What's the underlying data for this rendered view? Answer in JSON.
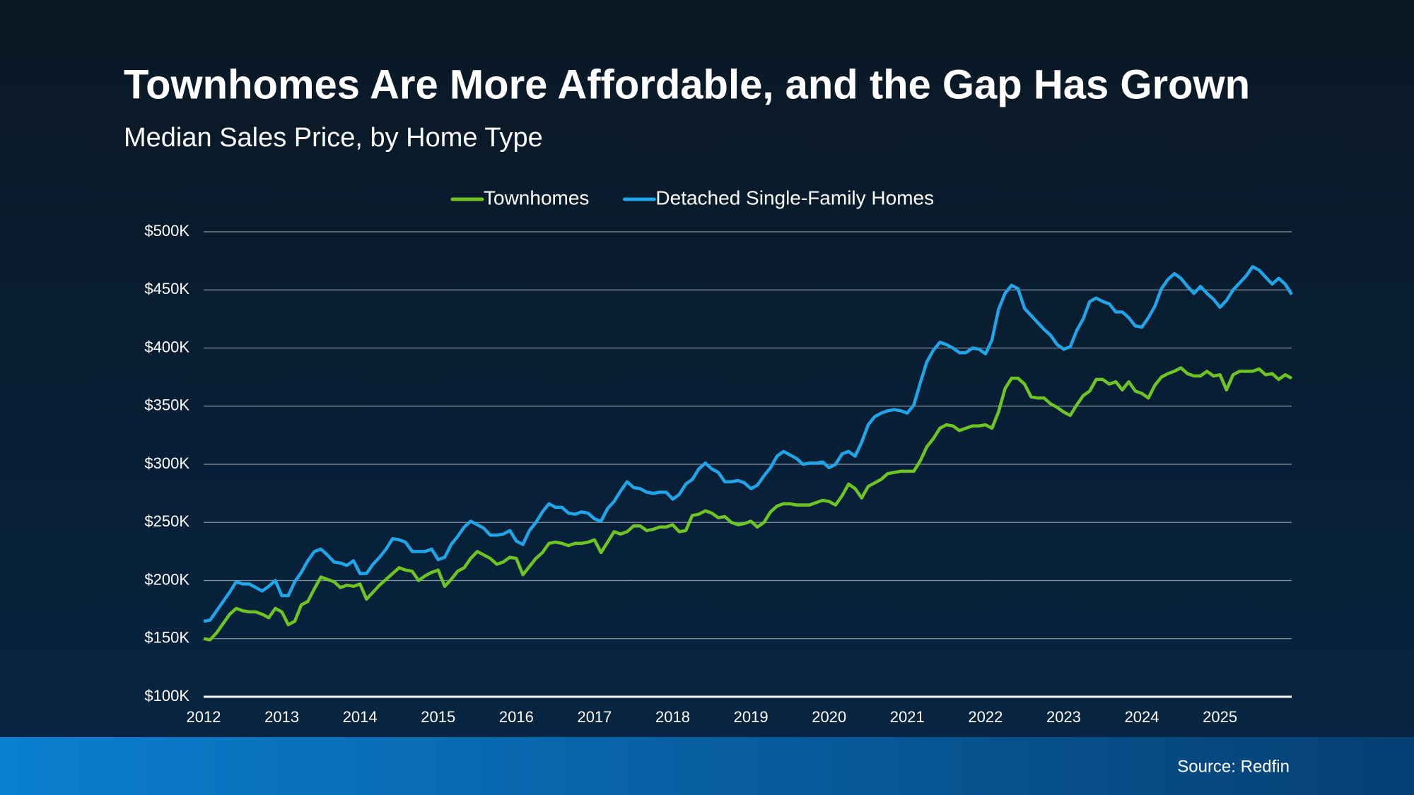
{
  "chart_data": {
    "type": "line",
    "title": "Townhomes Are More Affordable, and the Gap Has Grown",
    "subtitle": "Median Sales Price, by Home Type",
    "source": "Source: Redfin",
    "categories": [
      "2012",
      null,
      null,
      null,
      null,
      null,
      null,
      null,
      null,
      null,
      null,
      null,
      "2013",
      null,
      null,
      null,
      null,
      null,
      null,
      null,
      null,
      null,
      null,
      null,
      "2014",
      null,
      null,
      null,
      null,
      null,
      null,
      null,
      null,
      null,
      null,
      null,
      "2015",
      null,
      null,
      null,
      null,
      null,
      null,
      null,
      null,
      null,
      null,
      null,
      "2016",
      null,
      null,
      null,
      null,
      null,
      null,
      null,
      null,
      null,
      null,
      null,
      "2017",
      null,
      null,
      null,
      null,
      null,
      null,
      null,
      null,
      null,
      null,
      null,
      "2018",
      null,
      null,
      null,
      null,
      null,
      null,
      null,
      null,
      null,
      null,
      null,
      "2019",
      null,
      null,
      null,
      null,
      null,
      null,
      null,
      null,
      null,
      null,
      null,
      "2020",
      null,
      null,
      null,
      null,
      null,
      null,
      null,
      null,
      null,
      null,
      null,
      "2021",
      null,
      null,
      null,
      null,
      null,
      null,
      null,
      null,
      null,
      null,
      null,
      "2022",
      null,
      null,
      null,
      null,
      null,
      null,
      null,
      null,
      null,
      null,
      null,
      "2023",
      null,
      null,
      null,
      null,
      null,
      null,
      null,
      null,
      null,
      null,
      null,
      "2024",
      null,
      null,
      null,
      null,
      null,
      null,
      null,
      null,
      null,
      null,
      null,
      "2025",
      null,
      null,
      null,
      null,
      null,
      null,
      null,
      null,
      null,
      null,
      null
    ],
    "series": [
      {
        "name": "Townhomes",
        "color": "#6cc524",
        "values": [
          150000,
          149000,
          155000,
          163000,
          171000,
          176000,
          174000,
          173000,
          173000,
          171000,
          168000,
          176000,
          173000,
          162000,
          165000,
          179000,
          182000,
          193000,
          203000,
          201000,
          199000,
          194000,
          196000,
          195000,
          197000,
          184000,
          190000,
          196000,
          201000,
          206000,
          211000,
          209000,
          208000,
          200000,
          204000,
          207000,
          209000,
          195000,
          201000,
          208000,
          211000,
          219000,
          225000,
          222000,
          219000,
          214000,
          216000,
          220000,
          219000,
          205000,
          212000,
          219000,
          224000,
          232000,
          233000,
          232000,
          230000,
          232000,
          232000,
          233000,
          235000,
          224000,
          233000,
          242000,
          240000,
          242000,
          247000,
          247000,
          243000,
          244000,
          246000,
          246000,
          248000,
          242000,
          243000,
          256000,
          257000,
          260000,
          258000,
          254000,
          255000,
          250000,
          248000,
          249000,
          251000,
          246000,
          250000,
          259000,
          264000,
          266000,
          266000,
          265000,
          265000,
          265000,
          267000,
          269000,
          268000,
          265000,
          273000,
          283000,
          279000,
          271000,
          281000,
          284000,
          287000,
          292000,
          293000,
          294000,
          294000,
          294000,
          303000,
          315000,
          322000,
          331000,
          334000,
          333000,
          329000,
          331000,
          333000,
          333000,
          334000,
          331000,
          345000,
          365000,
          374000,
          374000,
          369000,
          358000,
          357000,
          357000,
          352000,
          349000,
          345000,
          342000,
          351000,
          359000,
          363000,
          373000,
          373000,
          369000,
          371000,
          364000,
          371000,
          363000,
          361000,
          357000,
          368000,
          375000,
          378000,
          380000,
          383000,
          378000,
          376000,
          376000,
          380000,
          376000,
          377000,
          364000,
          377000,
          380000,
          380000,
          380000,
          382000,
          377000,
          378000,
          373000,
          377000,
          374000
        ]
      },
      {
        "name": "Detached Single-Family Homes",
        "color": "#1fa5e8",
        "values": [
          165000,
          166000,
          174000,
          182000,
          190000,
          199000,
          197000,
          197000,
          194000,
          191000,
          195000,
          200000,
          187000,
          187000,
          199000,
          207000,
          217000,
          225000,
          227000,
          222000,
          216000,
          215000,
          213000,
          217000,
          206000,
          206000,
          214000,
          220000,
          227000,
          236000,
          235000,
          233000,
          225000,
          225000,
          225000,
          227000,
          218000,
          220000,
          231000,
          238000,
          246000,
          251000,
          248000,
          245000,
          239000,
          239000,
          240000,
          243000,
          234000,
          231000,
          243000,
          250000,
          259000,
          266000,
          263000,
          263000,
          258000,
          257000,
          259000,
          258000,
          253000,
          251000,
          262000,
          268000,
          277000,
          285000,
          280000,
          279000,
          276000,
          275000,
          276000,
          276000,
          270000,
          274000,
          283000,
          287000,
          296000,
          301000,
          296000,
          293000,
          285000,
          285000,
          286000,
          284000,
          279000,
          282000,
          290000,
          297000,
          307000,
          311000,
          308000,
          305000,
          300000,
          301000,
          301000,
          302000,
          297000,
          300000,
          309000,
          311000,
          307000,
          319000,
          334000,
          341000,
          344000,
          346000,
          347000,
          346000,
          344000,
          351000,
          370000,
          388000,
          398000,
          405000,
          403000,
          400000,
          396000,
          396000,
          400000,
          399000,
          395000,
          407000,
          433000,
          447000,
          454000,
          451000,
          434000,
          428000,
          422000,
          416000,
          411000,
          403000,
          399000,
          401000,
          415000,
          425000,
          440000,
          443000,
          440000,
          438000,
          431000,
          431000,
          426000,
          419000,
          418000,
          426000,
          436000,
          451000,
          459000,
          464000,
          460000,
          453000,
          447000,
          453000,
          447000,
          442000,
          435000,
          441000,
          450000,
          456000,
          462000,
          470000,
          467000,
          461000,
          455000,
          460000,
          455000,
          446000
        ]
      }
    ],
    "ylim": [
      100000,
      500000
    ],
    "yticks": [
      {
        "value": 100000,
        "label": "$100K"
      },
      {
        "value": 150000,
        "label": "$150K"
      },
      {
        "value": 200000,
        "label": "$200K"
      },
      {
        "value": 250000,
        "label": "$250K"
      },
      {
        "value": 300000,
        "label": "$300K"
      },
      {
        "value": 350000,
        "label": "$350K"
      },
      {
        "value": 400000,
        "label": "$400K"
      },
      {
        "value": 450000,
        "label": "$450K"
      },
      {
        "value": 500000,
        "label": "$500K"
      }
    ],
    "grid": true,
    "legend": "top"
  }
}
